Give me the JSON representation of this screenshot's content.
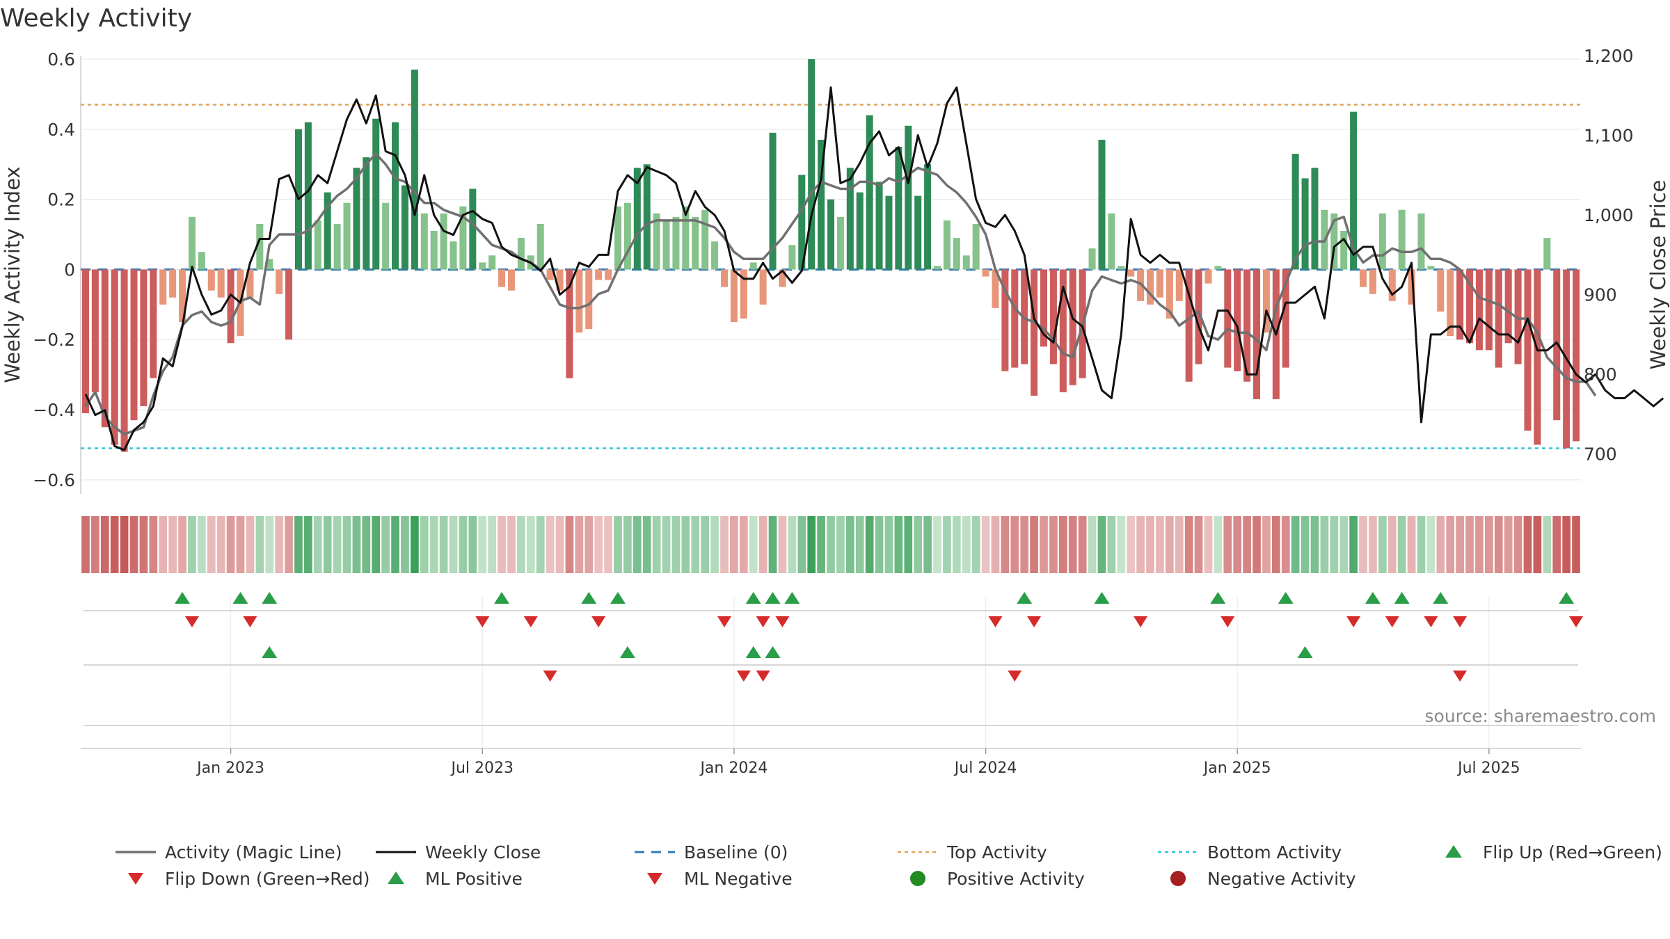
{
  "title": "Weekly Activity",
  "source": "source: sharemaestro.com",
  "chart_data": {
    "type": "bar",
    "title": "Weekly Activity",
    "ylabel_left": "Weekly Activity Index",
    "ylabel_right": "Weekly Close Price",
    "ylim_left": [
      -0.64,
      0.61
    ],
    "ylim_right": [
      650,
      1200
    ],
    "yticks_left": [
      0.6,
      0.4,
      0.2,
      0,
      -0.2,
      -0.4,
      -0.6
    ],
    "yticks_left_labels": [
      "0.6",
      "0.4",
      "0.2",
      "0",
      "−0.2",
      "−0.4",
      "−0.6"
    ],
    "yticks_right": [
      1200,
      1100,
      1000,
      900,
      800,
      700
    ],
    "yticks_right_labels": [
      "1,200",
      "1,100",
      "1,000",
      "900",
      "800",
      "700"
    ],
    "xticks": [
      {
        "label": "Jan 2023",
        "week": 15
      },
      {
        "label": "Jul 2023",
        "week": 41
      },
      {
        "label": "Jan 2024",
        "week": 67
      },
      {
        "label": "Jul 2024",
        "week": 93
      },
      {
        "label": "Jan 2025",
        "week": 119
      },
      {
        "label": "Jul 2025",
        "week": 145
      }
    ],
    "top_activity": 0.47,
    "bottom_activity": -0.51,
    "baseline": 0,
    "series": [
      {
        "name": "Activity (Magic Line)",
        "values": [
          -0.39,
          -0.35,
          -0.42,
          -0.45,
          -0.47,
          -0.46,
          -0.45,
          -0.36,
          -0.29,
          -0.25,
          -0.16,
          -0.13,
          -0.12,
          -0.15,
          -0.16,
          -0.15,
          -0.09,
          -0.08,
          -0.1,
          0.07,
          0.1,
          0.1,
          0.1,
          0.11,
          0.14,
          0.18,
          0.21,
          0.23,
          0.26,
          0.3,
          0.33,
          0.3,
          0.26,
          0.25,
          0.22,
          0.19,
          0.19,
          0.17,
          0.16,
          0.15,
          0.13,
          0.1,
          0.07,
          0.06,
          0.05,
          0.03,
          0.02,
          0.0,
          -0.05,
          -0.1,
          -0.11,
          -0.11,
          -0.1,
          -0.07,
          -0.06,
          0.0,
          0.05,
          0.1,
          0.13,
          0.14,
          0.14,
          0.14,
          0.14,
          0.14,
          0.13,
          0.12,
          0.09,
          0.05,
          0.03,
          0.03,
          0.03,
          0.06,
          0.09,
          0.13,
          0.17,
          0.22,
          0.25,
          0.24,
          0.23,
          0.23,
          0.25,
          0.25,
          0.24,
          0.26,
          0.25,
          0.27,
          0.29,
          0.28,
          0.27,
          0.24,
          0.22,
          0.19,
          0.15,
          0.1,
          0.0,
          -0.06,
          -0.11,
          -0.14,
          -0.15,
          -0.17,
          -0.2,
          -0.24,
          -0.25,
          -0.16,
          -0.06,
          -0.02,
          -0.03,
          -0.04,
          -0.03,
          -0.04,
          -0.07,
          -0.1,
          -0.12,
          -0.16,
          -0.14,
          -0.12,
          -0.19,
          -0.2,
          -0.17,
          -0.18,
          -0.18,
          -0.2,
          -0.23,
          -0.11,
          -0.04,
          0.03,
          0.07,
          0.08,
          0.08,
          0.14,
          0.15,
          0.06,
          0.02,
          0.04,
          0.04,
          0.06,
          0.05,
          0.05,
          0.06,
          0.03,
          0.03,
          0.02,
          0.0,
          -0.04,
          -0.08,
          -0.09,
          -0.1,
          -0.12,
          -0.14,
          -0.14,
          -0.18,
          -0.25,
          -0.28,
          -0.31,
          -0.32,
          -0.32,
          -0.36
        ]
      },
      {
        "name": "Weekly Close",
        "values": [
          775,
          749,
          755,
          710,
          705,
          730,
          740,
          760,
          820,
          810,
          860,
          935,
          900,
          875,
          880,
          900,
          890,
          940,
          970,
          970,
          1045,
          1050,
          1020,
          1030,
          1050,
          1040,
          1080,
          1120,
          1145,
          1115,
          1150,
          1080,
          1075,
          1050,
          1000,
          1050,
          1000,
          980,
          975,
          1000,
          1005,
          995,
          990,
          960,
          950,
          945,
          940,
          930,
          945,
          900,
          910,
          940,
          935,
          950,
          950,
          1030,
          1050,
          1040,
          1060,
          1055,
          1050,
          1040,
          1000,
          1030,
          1010,
          1000,
          980,
          930,
          920,
          920,
          940,
          920,
          930,
          915,
          930,
          1000,
          1045,
          1160,
          1040,
          1045,
          1065,
          1090,
          1105,
          1075,
          1085,
          1040,
          1100,
          1060,
          1090,
          1140,
          1160,
          1090,
          1020,
          990,
          985,
          1000,
          980,
          950,
          870,
          850,
          840,
          910,
          870,
          860,
          820,
          780,
          770,
          850,
          995,
          950,
          940,
          950,
          940,
          940,
          900,
          860,
          830,
          880,
          880,
          860,
          800,
          800,
          880,
          850,
          890,
          890,
          900,
          910,
          870,
          960,
          970,
          950,
          960,
          960,
          920,
          900,
          910,
          940,
          740,
          850,
          850,
          860,
          860,
          840,
          870,
          860,
          850,
          850,
          840,
          870,
          830,
          830,
          840,
          820,
          800,
          790,
          800,
          780,
          770,
          770,
          780,
          770,
          760,
          770
        ]
      },
      {
        "name": "Weekly Activity Index",
        "values": [
          -0.41,
          -0.35,
          -0.45,
          -0.5,
          -0.52,
          -0.43,
          -0.39,
          -0.31,
          -0.1,
          -0.08,
          -0.15,
          0.15,
          0.05,
          -0.06,
          -0.08,
          -0.21,
          -0.19,
          -0.08,
          0.13,
          0.03,
          -0.07,
          -0.2,
          0.4,
          0.42,
          0.14,
          0.22,
          0.13,
          0.19,
          0.29,
          0.32,
          0.43,
          0.19,
          0.42,
          0.24,
          0.57,
          0.16,
          0.11,
          0.16,
          0.08,
          0.18,
          0.23,
          0.02,
          0.04,
          -0.05,
          -0.06,
          0.09,
          0.04,
          0.13,
          -0.03,
          -0.06,
          -0.31,
          -0.18,
          -0.17,
          -0.03,
          -0.03,
          0.18,
          0.19,
          0.29,
          0.3,
          0.16,
          0.14,
          0.15,
          0.18,
          0.15,
          0.17,
          0.08,
          -0.05,
          -0.15,
          -0.14,
          0.02,
          -0.1,
          0.39,
          -0.05,
          0.07,
          0.27,
          0.6,
          0.37,
          0.2,
          0.15,
          0.29,
          0.22,
          0.44,
          0.25,
          0.21,
          0.35,
          0.41,
          0.21,
          0.3,
          0.01,
          0.14,
          0.09,
          0.04,
          0.13,
          -0.02,
          -0.11,
          -0.29,
          -0.28,
          -0.27,
          -0.36,
          -0.22,
          -0.27,
          -0.35,
          -0.33,
          -0.31,
          0.06,
          0.37,
          0.16,
          0.01,
          -0.02,
          -0.09,
          -0.1,
          -0.08,
          -0.14,
          -0.09,
          -0.32,
          -0.27,
          -0.04,
          0.01,
          -0.28,
          -0.29,
          -0.32,
          -0.37,
          -0.18,
          -0.37,
          -0.28,
          0.33,
          0.26,
          0.29,
          0.17,
          0.16,
          0.11,
          0.45,
          -0.05,
          -0.07,
          0.16,
          -0.09,
          0.17,
          -0.1,
          0.16,
          0.01,
          -0.12,
          -0.19,
          -0.2,
          -0.21,
          -0.23,
          -0.23,
          -0.28,
          -0.21,
          -0.27,
          -0.46,
          -0.5,
          0.09,
          -0.43,
          -0.51,
          -0.49
        ]
      }
    ],
    "flip_up_weeks": [
      10,
      16,
      19,
      43,
      52,
      55,
      69,
      71,
      73,
      97,
      105,
      117,
      124,
      133,
      136,
      140,
      153
    ],
    "flip_down_weeks": [
      11,
      17,
      41,
      46,
      53,
      66,
      70,
      72,
      94,
      98,
      109,
      118,
      131,
      135,
      139,
      142,
      154
    ],
    "ml_positive_weeks": [
      19,
      56,
      69,
      71,
      126
    ],
    "ml_negative_weeks": [
      48,
      68,
      70,
      96,
      142
    ],
    "legend": [
      "Activity (Magic Line)",
      "Weekly Close",
      "Baseline (0)",
      "Top Activity",
      "Bottom Activity",
      "Flip Up (Red→Green)",
      "Flip Down (Green→Red)",
      "ML Positive",
      "ML Negative",
      "Positive Activity",
      "Negative Activity"
    ]
  },
  "colors": {
    "magic_line": "#707070",
    "close_line": "#111111",
    "baseline": "#2f78b4",
    "top_line": "#e0a458",
    "bottom_line": "#2fc4d6",
    "pos_dark": "#2e8b57",
    "pos_light": "#86c28b",
    "neg_dark": "#cd5c5c",
    "neg_light": "#e8967a",
    "up_marker": "#2a9d48",
    "down_marker": "#d62b2b",
    "pos_dot": "#228b22",
    "neg_dot": "#a51f1f"
  }
}
